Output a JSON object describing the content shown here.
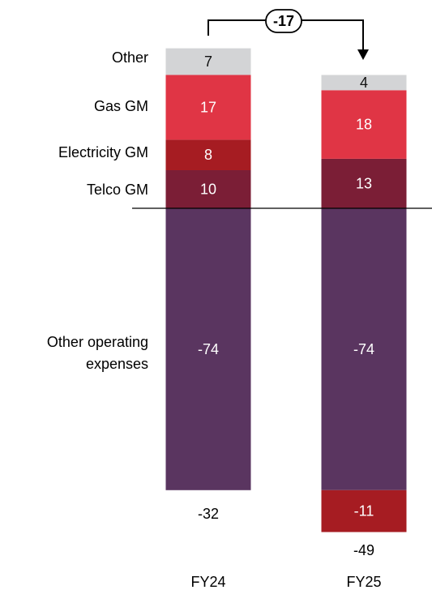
{
  "chart_data": {
    "type": "bar",
    "subtype": "stacked",
    "categories": [
      "FY24",
      "FY25"
    ],
    "series": [
      {
        "name": "Other operating expenses",
        "values": [
          -74,
          -74
        ],
        "color": "#5a3560"
      },
      {
        "name": "Telco GM",
        "values": [
          10,
          13
        ],
        "color": "#7b1e36"
      },
      {
        "name": "Electricity GM",
        "values": [
          8,
          -11
        ],
        "color": "#a61c22"
      },
      {
        "name": "Gas GM",
        "values": [
          17,
          18
        ],
        "color": "#e03545"
      },
      {
        "name": "Other",
        "values": [
          7,
          4
        ],
        "color": "#d3d4d6"
      }
    ],
    "totals": [
      "-32",
      "-49"
    ],
    "bridge": {
      "label": "-17",
      "from": "FY24",
      "to": "FY25"
    },
    "labels": {
      "other": "Other",
      "gas": "Gas GM",
      "electricity": "Electricity GM",
      "telco": "Telco GM",
      "opex_line1": "Other operating",
      "opex_line2": "expenses"
    },
    "legend_position": "left",
    "grid": false
  }
}
